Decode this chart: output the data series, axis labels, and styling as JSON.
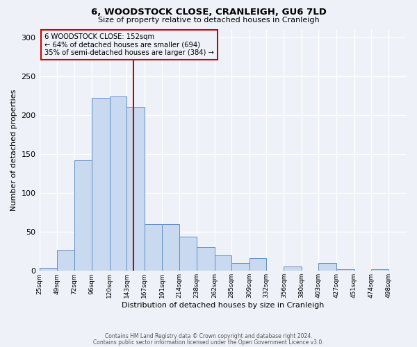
{
  "title": "6, WOODSTOCK CLOSE, CRANLEIGH, GU6 7LD",
  "subtitle": "Size of property relative to detached houses in Cranleigh",
  "xlabel": "Distribution of detached houses by size in Cranleigh",
  "ylabel": "Number of detached properties",
  "bin_labels": [
    "25sqm",
    "49sqm",
    "72sqm",
    "96sqm",
    "120sqm",
    "143sqm",
    "167sqm",
    "191sqm",
    "214sqm",
    "238sqm",
    "262sqm",
    "285sqm",
    "309sqm",
    "332sqm",
    "356sqm",
    "380sqm",
    "403sqm",
    "427sqm",
    "451sqm",
    "474sqm",
    "498sqm"
  ],
  "bar_heights": [
    4,
    27,
    142,
    222,
    224,
    211,
    60,
    60,
    44,
    31,
    20,
    10,
    16,
    0,
    6,
    0,
    10,
    2,
    0,
    2,
    0
  ],
  "bar_color": "#c8d9f0",
  "bar_edge_color": "#6090c8",
  "vline_x": 152,
  "vline_color": "#cc0000",
  "annotation_title": "6 WOODSTOCK CLOSE: 152sqm",
  "annotation_line1": "← 64% of detached houses are smaller (694)",
  "annotation_line2": "35% of semi-detached houses are larger (384) →",
  "annotation_box_color": "#cc0000",
  "ylim": [
    0,
    310
  ],
  "yticks": [
    0,
    50,
    100,
    150,
    200,
    250,
    300
  ],
  "bin_edges": [
    25,
    49,
    72,
    96,
    120,
    143,
    167,
    191,
    214,
    238,
    262,
    285,
    309,
    332,
    356,
    380,
    403,
    427,
    451,
    474,
    498,
    522
  ],
  "footer1": "Contains HM Land Registry data © Crown copyright and database right 2024.",
  "footer2": "Contains public sector information licensed under the Open Government Licence v3.0.",
  "background_color": "#eef2f8"
}
